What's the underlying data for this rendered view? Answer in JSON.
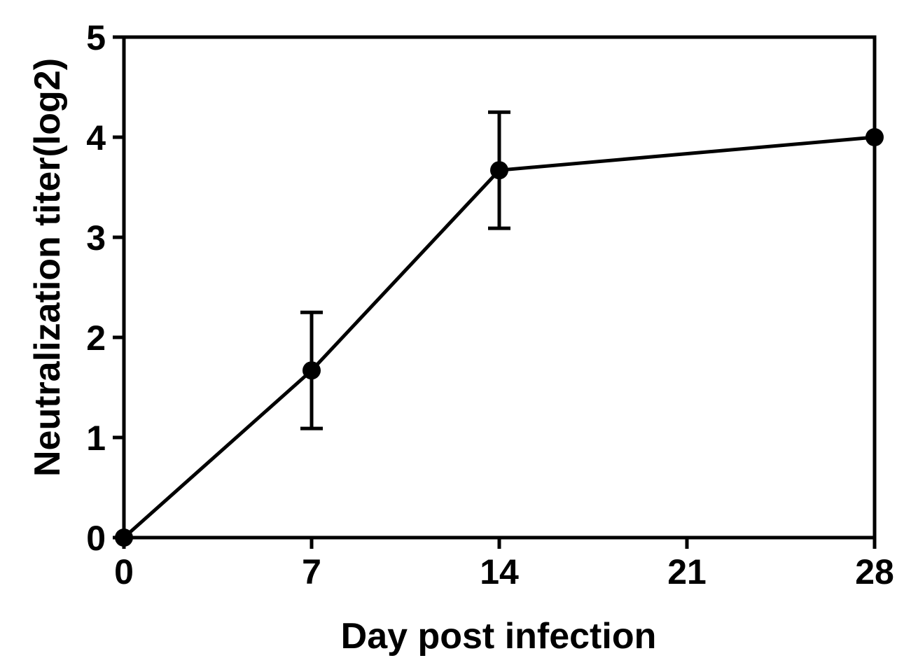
{
  "chart_data": {
    "type": "line",
    "title": "",
    "xlabel": "Day post infection",
    "ylabel": "Neutralization titer(log2)",
    "xlim": [
      0,
      28
    ],
    "ylim": [
      0,
      5
    ],
    "x_ticks": [
      0,
      7,
      14,
      21,
      28
    ],
    "x_tick_labels": [
      "0",
      "7",
      "14",
      "21",
      "28"
    ],
    "y_ticks": [
      0,
      1,
      2,
      3,
      4,
      5
    ],
    "y_tick_labels": [
      "0",
      "1",
      "2",
      "3",
      "4",
      "5"
    ],
    "grid": false,
    "legend": "none",
    "series": [
      {
        "x": [
          0,
          7,
          14,
          28
        ],
        "y": [
          0,
          1.67,
          3.67,
          4.0
        ],
        "error": [
          0,
          0.58,
          0.58,
          0
        ],
        "color": "#000000",
        "marker": "filled-circle"
      }
    ]
  }
}
